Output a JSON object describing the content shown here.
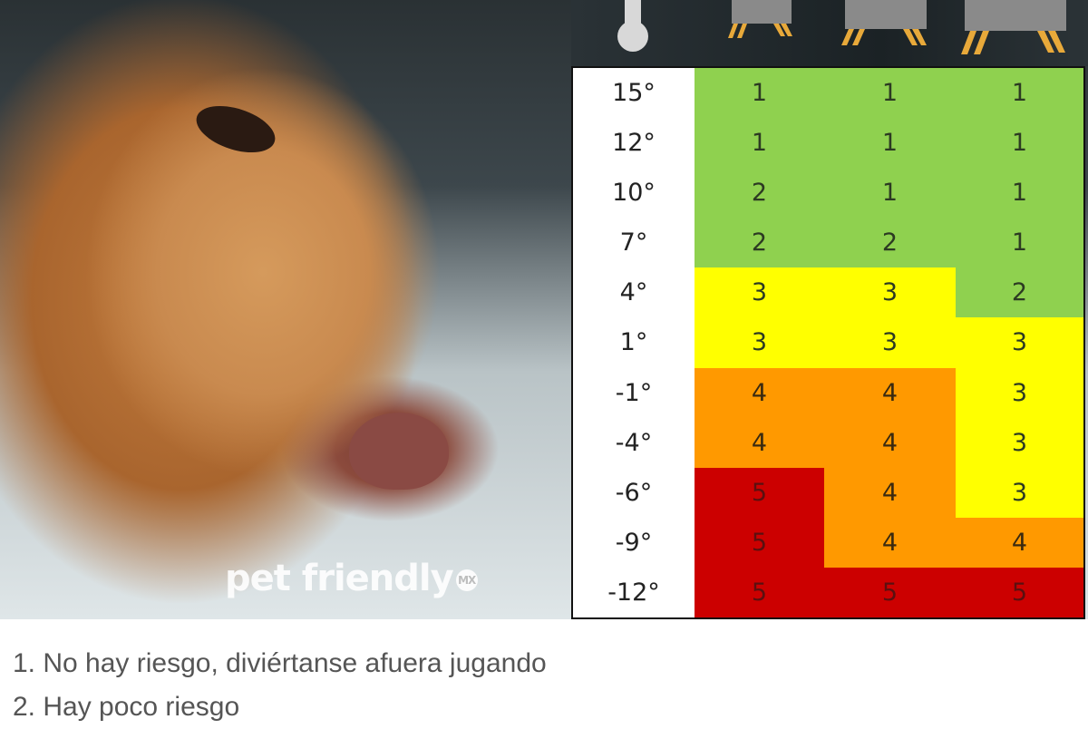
{
  "logo_text": "pet friendly",
  "logo_badge": "MX",
  "colors": {
    "1": "#8fd14f",
    "2": "#8fd14f",
    "3": "#ffff00",
    "4": "#ff9900",
    "5": "#cc0000"
  },
  "header_icons": [
    "thermometer-icon",
    "small-dog-icon",
    "medium-dog-icon",
    "large-dog-icon"
  ],
  "chart_data": {
    "type": "table",
    "columns": [
      "temperature",
      "small-dog",
      "medium-dog",
      "large-dog"
    ],
    "rows": [
      {
        "temp": "15°",
        "values": [
          1,
          1,
          1
        ]
      },
      {
        "temp": "12°",
        "values": [
          1,
          1,
          1
        ]
      },
      {
        "temp": "10°",
        "values": [
          2,
          1,
          1
        ]
      },
      {
        "temp": "7°",
        "values": [
          2,
          2,
          1
        ]
      },
      {
        "temp": "4°",
        "values": [
          3,
          3,
          2
        ]
      },
      {
        "temp": "1°",
        "values": [
          3,
          3,
          3
        ]
      },
      {
        "temp": "-1°",
        "values": [
          4,
          4,
          3
        ]
      },
      {
        "temp": "-4°",
        "values": [
          4,
          4,
          3
        ]
      },
      {
        "temp": "-6°",
        "values": [
          5,
          4,
          3
        ]
      },
      {
        "temp": "-9°",
        "values": [
          5,
          4,
          4
        ]
      },
      {
        "temp": "-12°",
        "values": [
          5,
          5,
          5
        ]
      }
    ]
  },
  "legend": [
    "1. No hay riesgo, diviértanse afuera jugando",
    "2. Hay poco riesgo"
  ]
}
